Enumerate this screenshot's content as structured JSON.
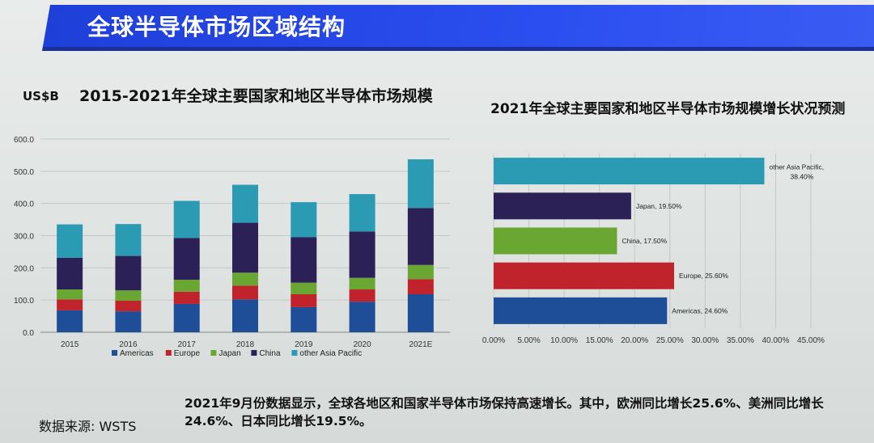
{
  "header": {
    "title": "全球半导体市场区域结构"
  },
  "left_panel": {
    "unit": "US$B",
    "title": "2015-2021年全球主要国家和地区半导体市场规模"
  },
  "right_panel": {
    "title": "2021年全球主要国家和地区半导体市场规模增长状况预测"
  },
  "footer": {
    "summary": "2021年9月份数据显示，全球各地区和国家半导体市场保持高速增长。其中，欧洲同比增长25.6%、美洲同比增长24.6%、日本同比增长19.5%。",
    "source": "数据来源: WSTS"
  },
  "chart_data": [
    {
      "type": "bar",
      "stacked": true,
      "title": "2015-2021年全球主要国家和地区半导体市场规模",
      "ylabel": "US$B",
      "ylim": [
        0,
        600
      ],
      "yticks": [
        "0.0",
        "100.0",
        "200.0",
        "300.0",
        "400.0",
        "500.0",
        "600.0"
      ],
      "grid": true,
      "legend_position": "bottom",
      "categories": [
        "2015",
        "2016",
        "2017",
        "2018",
        "2019",
        "2020",
        "2021E"
      ],
      "series": [
        {
          "name": "Americas",
          "color": "#1f4e99",
          "values": [
            68,
            65,
            88,
            102,
            78,
            95,
            118
          ]
        },
        {
          "name": "Europe",
          "color": "#c0232c",
          "values": [
            34,
            33,
            38,
            43,
            40,
            38,
            47
          ]
        },
        {
          "name": "Japan",
          "color": "#6aa632",
          "values": [
            31,
            32,
            37,
            40,
            36,
            36,
            44
          ]
        },
        {
          "name": "China",
          "color": "#2b2156",
          "values": [
            98,
            107,
            130,
            155,
            141,
            144,
            177
          ]
        },
        {
          "name": "other Asia Pacific",
          "color": "#2b9bb3",
          "values": [
            104,
            99,
            115,
            118,
            109,
            116,
            151
          ]
        }
      ]
    },
    {
      "type": "bar",
      "orientation": "horizontal",
      "title": "2021年全球主要国家和地区半导体市场规模增长状况预测",
      "xlim": [
        0,
        45
      ],
      "xticks": [
        "0.00%",
        "5.00%",
        "10.00%",
        "15.00%",
        "20.00%",
        "25.00%",
        "30.00%",
        "35.00%",
        "40.00%",
        "45.00%"
      ],
      "grid": true,
      "categories": [
        "other Asia Pacific",
        "Japan",
        "China",
        "Europe",
        "Americas"
      ],
      "values": [
        38.4,
        19.5,
        17.5,
        25.6,
        24.6
      ],
      "labels": [
        "other Asia Pacific, 38.40%",
        "Japan, 19.50%",
        "China, 17.50%",
        "Europe, 25.60%",
        "Americas, 24.60%"
      ],
      "colors": [
        "#2b9bb3",
        "#2b2156",
        "#6aa632",
        "#c0232c",
        "#1f4e99"
      ]
    }
  ]
}
